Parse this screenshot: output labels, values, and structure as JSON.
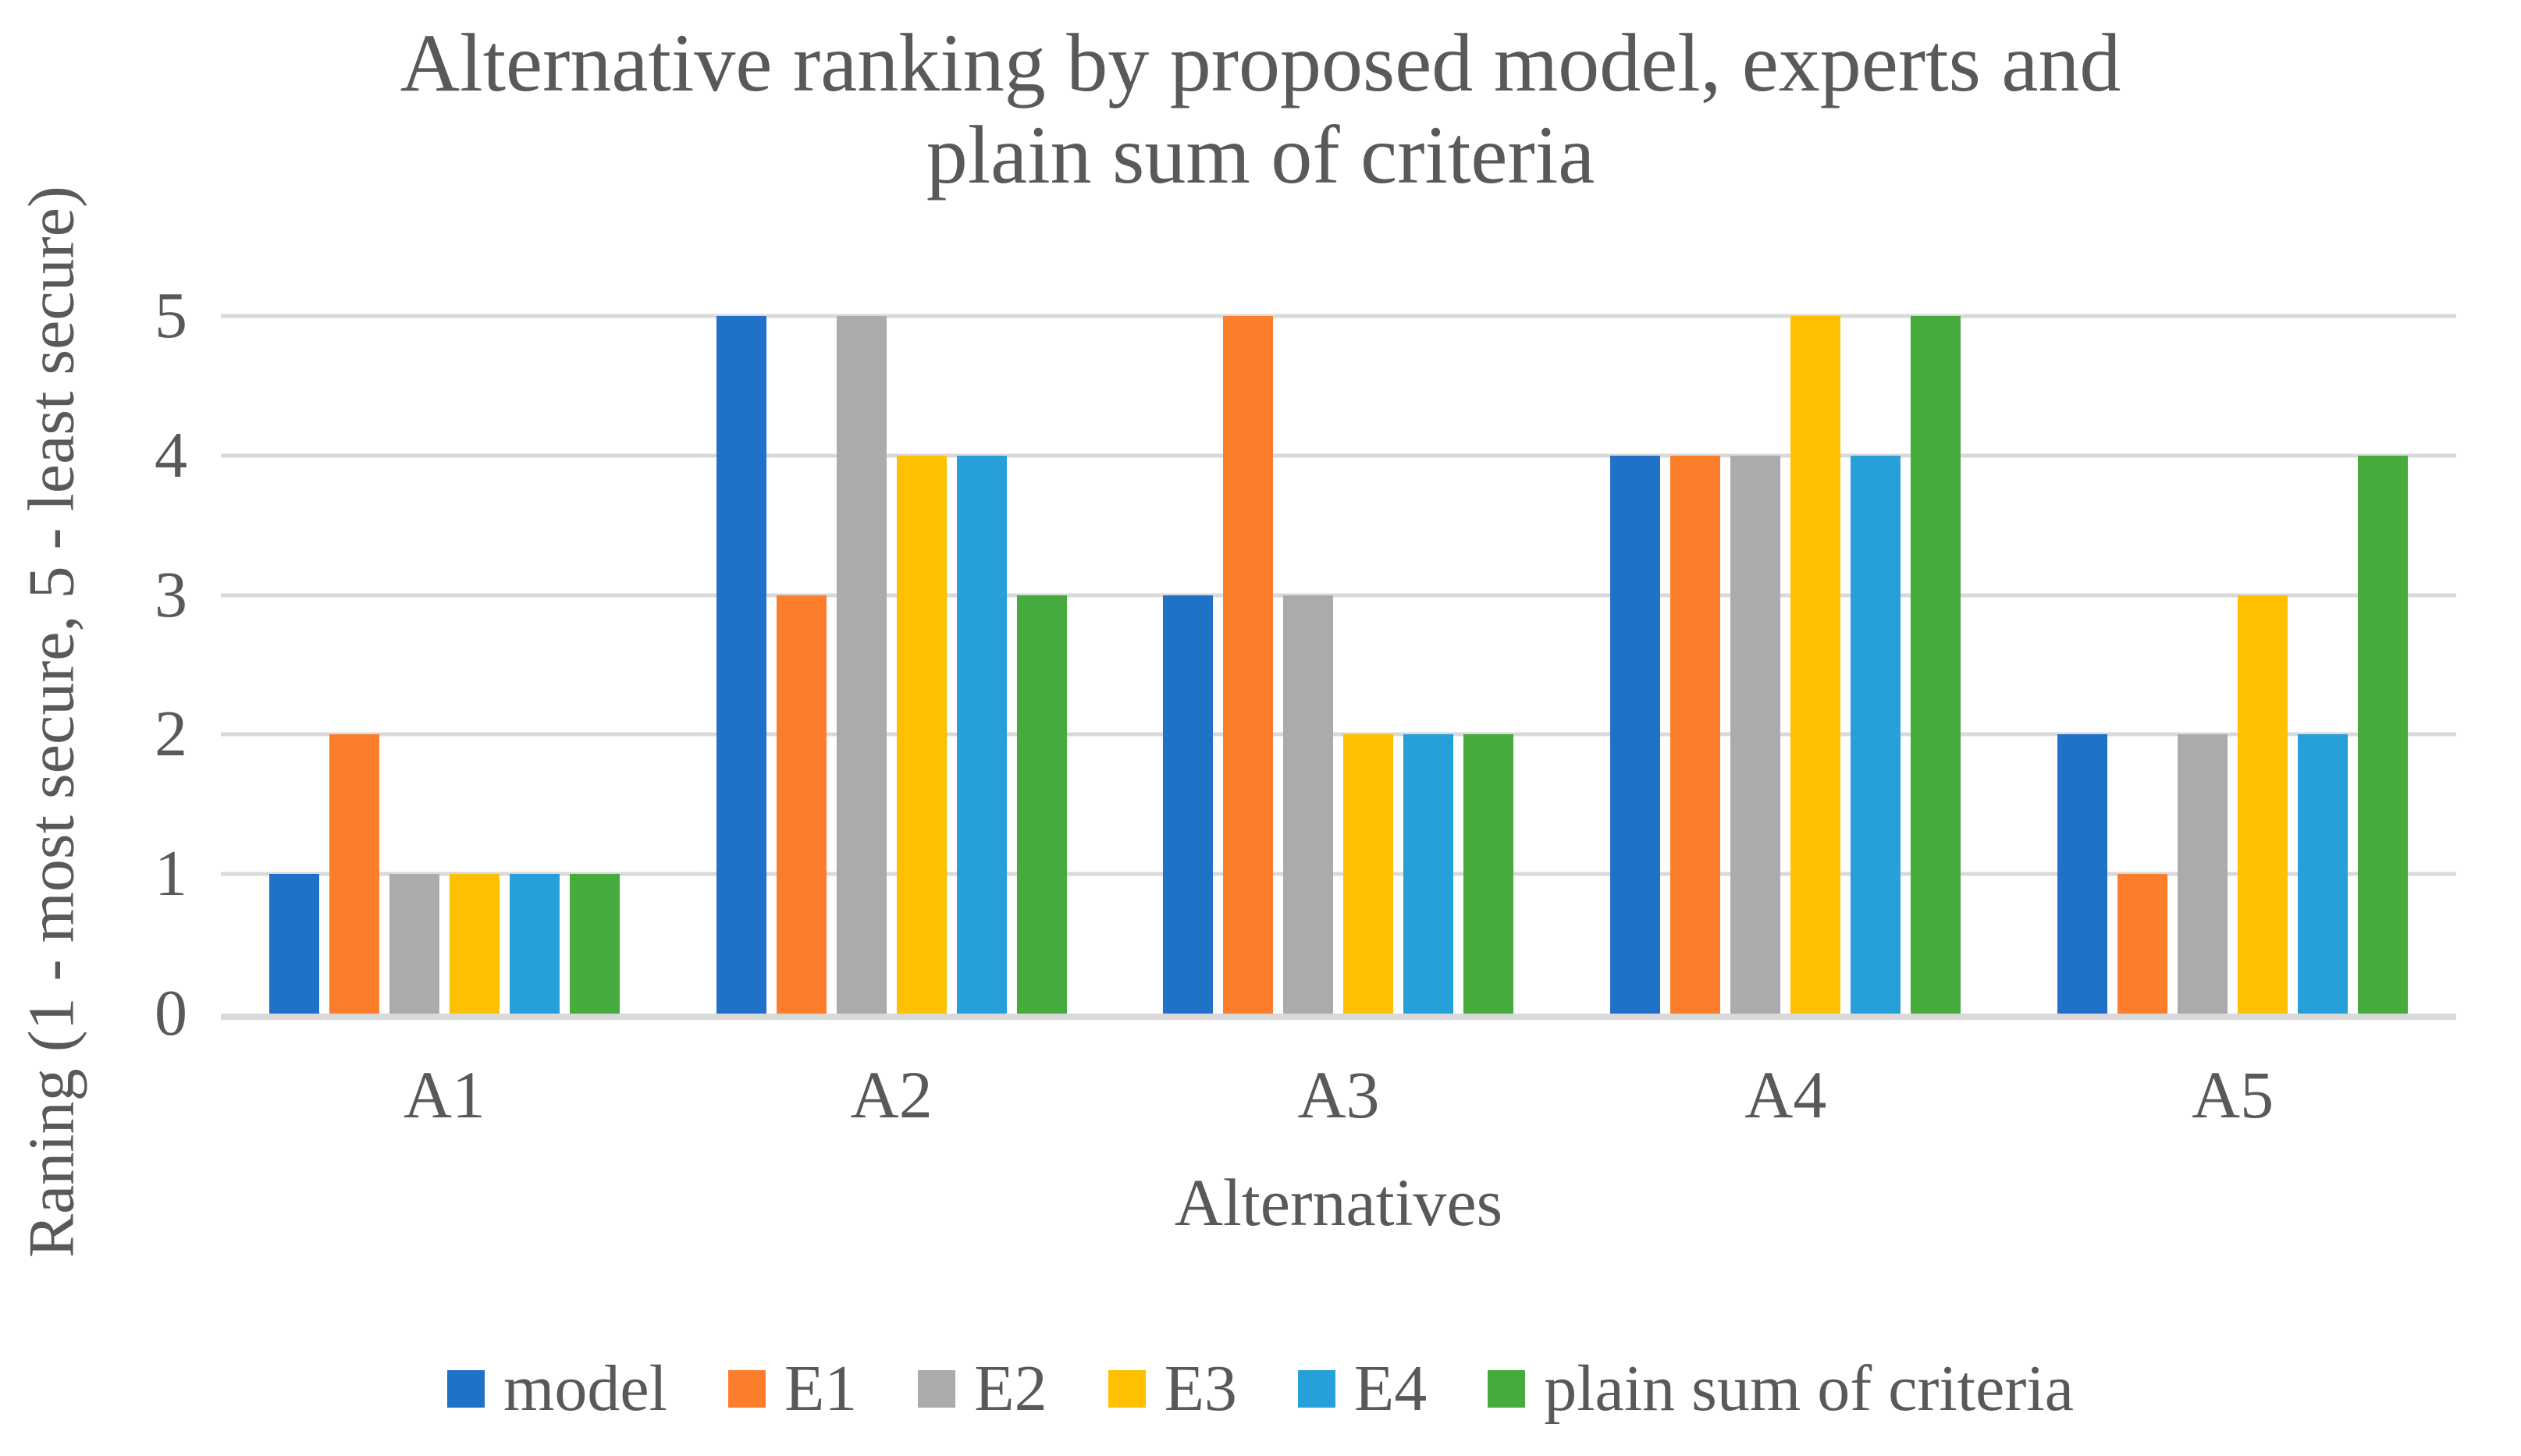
{
  "chart_data": {
    "type": "bar",
    "title": "Alternative ranking by proposed model, experts and plain sum of criteria",
    "title_lines": [
      "Alternative ranking by proposed model, experts and",
      "plain sum of criteria"
    ],
    "xlabel": "Alternatives",
    "ylabel": "Raning (1 - most secure, 5 - least secure)",
    "categories": [
      "A1",
      "A2",
      "A3",
      "A4",
      "A5"
    ],
    "series": [
      {
        "name": "model",
        "color": "#1F72C8",
        "values": [
          1,
          5,
          3,
          4,
          2
        ]
      },
      {
        "name": "E1",
        "color": "#FC7E2D",
        "values": [
          2,
          3,
          5,
          4,
          1
        ]
      },
      {
        "name": "E2",
        "color": "#ABABAB",
        "values": [
          1,
          5,
          3,
          4,
          2
        ]
      },
      {
        "name": "E3",
        "color": "#FFC000",
        "values": [
          1,
          4,
          2,
          5,
          3
        ]
      },
      {
        "name": "E4",
        "color": "#27A0DA",
        "values": [
          1,
          4,
          2,
          4,
          2
        ]
      },
      {
        "name": "plain sum of criteria",
        "color": "#45AB3D",
        "values": [
          1,
          3,
          2,
          5,
          4
        ]
      }
    ],
    "ylim": [
      0,
      5
    ],
    "yticks": [
      0,
      1,
      2,
      3,
      4,
      5
    ],
    "grid": true,
    "legend_position": "bottom",
    "colors": {
      "text": "#595959",
      "gridline": "#D9D9D9",
      "axis_line": "#D9D9D9",
      "background": "#FFFFFF"
    }
  }
}
